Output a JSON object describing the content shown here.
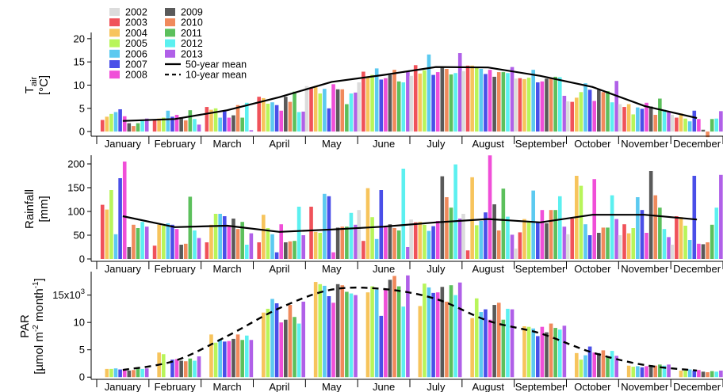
{
  "chart_data": {
    "type": "bar",
    "years": [
      "2002",
      "2003",
      "2004",
      "2005",
      "2006",
      "2007",
      "2008",
      "2009",
      "2010",
      "2011",
      "2012",
      "2013"
    ],
    "year_colors": [
      "#dcdcdc",
      "#f0525a",
      "#f7c45c",
      "#b8f55a",
      "#5ccaf0",
      "#4a4fe8",
      "#f04fd8",
      "#5a5a5a",
      "#f08a5c",
      "#5cc05c",
      "#5cf0f0",
      "#b060e8"
    ],
    "categories": [
      "January",
      "February",
      "March",
      "April",
      "May",
      "June",
      "July",
      "August",
      "September",
      "October",
      "November",
      "December"
    ],
    "legend": {
      "items": [
        "2002",
        "2003",
        "2004",
        "2005",
        "2006",
        "2007",
        "2008",
        "2009",
        "2010",
        "2011",
        "2012",
        "2013"
      ],
      "mean50_label": "50-year mean",
      "mean10_label": "10-year mean"
    },
    "panels": [
      {
        "id": "tair",
        "ylabel_main": "T",
        "ylabel_sub": "air",
        "ylabel_unit": "[°C]",
        "ylim": [
          -1,
          21
        ],
        "yticks": [
          0,
          5,
          10,
          15,
          20
        ],
        "ytick_labels": [
          "0",
          "5",
          "10",
          "15",
          "20"
        ],
        "values": [
          [
            null,
            2.5,
            3.2,
            3.8,
            4.2,
            4.8,
            3.3,
            1.8,
            1.2,
            1.8,
            2.5,
            2.8
          ],
          [
            null,
            2.5,
            2.8,
            3.0,
            4.5,
            3.2,
            3.6,
            3.1,
            2.4,
            4.6,
            2.7,
            1.5
          ],
          [
            null,
            5.3,
            4.7,
            5.0,
            3.0,
            4.6,
            3.0,
            3.5,
            5.7,
            3.0,
            6.2,
            0.3
          ],
          [
            null,
            7.5,
            7.2,
            6.0,
            6.3,
            5.7,
            4.5,
            7.5,
            6.4,
            8.6,
            4.2,
            4.3
          ],
          [
            9.8,
            9.3,
            9.8,
            8.2,
            9.2,
            5.0,
            10.2,
            9.1,
            9.1,
            5.9,
            8.2,
            8.4
          ],
          [
            10.6,
            12.9,
            11.8,
            12.2,
            13.6,
            11.2,
            11.5,
            12.2,
            13.3,
            10.8,
            10.6,
            13.0
          ],
          [
            12.0,
            14.3,
            12.5,
            13.2,
            16.6,
            12.2,
            12.8,
            13.9,
            13.5,
            12.3,
            12.6,
            16.9
          ],
          [
            13.0,
            14.2,
            14.2,
            13.7,
            13.5,
            12.4,
            13.3,
            11.8,
            12.8,
            12.8,
            12.6,
            13.9
          ],
          [
            11.4,
            11.5,
            11.3,
            11.6,
            13.3,
            10.6,
            10.8,
            11.4,
            11.6,
            11.8,
            11.7,
            7.7
          ],
          [
            6.5,
            6.4,
            7.3,
            8.5,
            10.4,
            9.0,
            6.6,
            9.0,
            8.5,
            8.7,
            6.3,
            10.9
          ],
          [
            5.9,
            5.3,
            5.9,
            3.7,
            5.2,
            4.9,
            6.2,
            5.4,
            3.6,
            7.1,
            4.7,
            4.3
          ],
          [
            3.6,
            3.0,
            3.9,
            2.8,
            2.2,
            4.5,
            2.7,
            0.4,
            -1.2,
            2.7,
            2.8,
            4.4
          ]
        ],
        "mean50": [
          2.3,
          2.7,
          4.6,
          7.4,
          10.7,
          12.2,
          13.9,
          13.8,
          12.0,
          9.6,
          5.5,
          2.9
        ],
        "mean10": null
      },
      {
        "id": "rain",
        "ylabel_main": "Rainfall",
        "ylabel_sub": "",
        "ylabel_unit": "[mm]",
        "ylim": [
          -5,
          215
        ],
        "yticks": [
          0,
          50,
          100,
          150,
          200
        ],
        "ytick_labels": [
          "0",
          "50",
          "100",
          "150",
          "200"
        ],
        "values": [
          [
            null,
            114,
            104,
            145,
            52,
            170,
            205,
            25,
            72,
            65,
            78,
            68
          ],
          [
            null,
            28,
            72,
            70,
            75,
            72,
            63,
            30,
            32,
            131,
            60,
            44
          ],
          [
            null,
            35,
            72,
            95,
            95,
            90,
            68,
            85,
            63,
            78,
            30,
            54
          ],
          [
            null,
            35,
            93,
            65,
            52,
            14,
            73,
            35,
            37,
            38,
            110,
            50
          ],
          [
            null,
            110,
            57,
            55,
            137,
            132,
            14,
            66,
            68,
            68,
            97,
            72
          ],
          [
            103,
            38,
            149,
            88,
            42,
            145,
            67,
            73,
            65,
            60,
            190,
            25
          ],
          [
            83,
            77,
            78,
            72,
            59,
            69,
            80,
            174,
            130,
            108,
            199,
            85
          ],
          [
            95,
            18,
            172,
            71,
            80,
            98,
            218,
            115,
            60,
            148,
            89,
            51
          ],
          [
            22,
            56,
            84,
            77,
            144,
            76,
            103,
            75,
            103,
            103,
            132,
            68
          ],
          [
            52,
            85,
            175,
            154,
            73,
            50,
            168,
            55,
            66,
            66,
            134,
            84
          ],
          [
            50,
            73,
            54,
            65,
            130,
            103,
            55,
            185,
            134,
            108,
            63,
            46
          ],
          [
            30,
            90,
            88,
            70,
            40,
            175,
            32,
            31,
            35,
            72,
            108,
            177
          ]
        ],
        "mean50": [
          90,
          67,
          70,
          57,
          62,
          68,
          77,
          84,
          77,
          93,
          93,
          83
        ],
        "mean10": null
      },
      {
        "id": "par",
        "ylabel_main": "PAR",
        "ylabel_sub": "",
        "ylabel_unit": "[µmol m⁻² month⁻¹]",
        "ylim": [
          -0.4,
          19
        ],
        "yticks": [
          0,
          5,
          10,
          15
        ],
        "ytick_labels": [
          "0",
          "5",
          "10",
          "15x10³"
        ],
        "values": [
          [
            null,
            null,
            1.5,
            1.5,
            1.6,
            1.4,
            1.5,
            1.2,
            1.3,
            1.7,
            1.5,
            1.6
          ],
          [
            null,
            null,
            4.5,
            4.2,
            null,
            3.2,
            3.3,
            3.0,
            2.9,
            3.4,
            3.0,
            3.8
          ],
          [
            null,
            null,
            7.8,
            6.3,
            7.0,
            6.5,
            6.6,
            7.0,
            7.8,
            6.8,
            7.6,
            6.8
          ],
          [
            null,
            null,
            11.8,
            12.5,
            14.3,
            13.5,
            10.0,
            10.5,
            13.2,
            11.0,
            9.8,
            13.8
          ],
          [
            null,
            null,
            17.4,
            17.0,
            16.7,
            14.8,
            13.6,
            17.0,
            16.8,
            15.6,
            15.3,
            15.0
          ],
          [
            null,
            null,
            15.5,
            16.6,
            16.0,
            11.2,
            16.2,
            17.8,
            18.5,
            16.6,
            12.9,
            18.6
          ],
          [
            null,
            null,
            13.0,
            17.1,
            16.4,
            15.4,
            15.5,
            16.5,
            13.8,
            16.8,
            15.0,
            17.3
          ],
          [
            null,
            null,
            10.8,
            14.4,
            11.9,
            12.4,
            10.5,
            13.2,
            13.6,
            10.5,
            12.5,
            12.4
          ],
          [
            null,
            null,
            9.3,
            9.2,
            8.9,
            7.5,
            9.2,
            8.2,
            9.8,
            9.0,
            8.7,
            9.4
          ],
          [
            null,
            null,
            4.4,
            3.2,
            4.0,
            5.6,
            4.5,
            4.4,
            4.9,
            3.6,
            4.8,
            3.9
          ],
          [
            null,
            null,
            2.1,
            1.9,
            2.0,
            1.8,
            2.0,
            2.2,
            2.1,
            2.3,
            2.1,
            2.3
          ],
          [
            null,
            null,
            1.2,
            1.2,
            1.4,
            1.2,
            1.3,
            1.0,
            0.9,
            1.1,
            1.0,
            1.2
          ]
        ],
        "mean50": null,
        "mean10": [
          1.3,
          3.0,
          7.5,
          12.6,
          16.0,
          16.1,
          14.3,
          10.3,
          8.0,
          4.5,
          2.2,
          1.2
        ]
      }
    ]
  }
}
